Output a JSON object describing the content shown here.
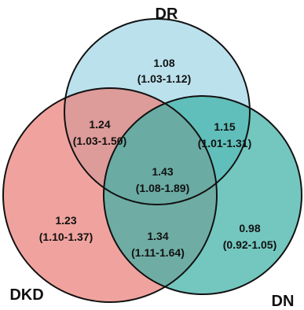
{
  "sets": {
    "top": {
      "label": "DR",
      "fill": "#A8D8E8"
    },
    "left": {
      "label": "DKD",
      "fill": "#EA7F78"
    },
    "right": {
      "label": "DN",
      "fill": "#3DB2A6"
    }
  },
  "regions": {
    "top_only": {
      "value": "1.08",
      "ci": "(1.03-1.12)"
    },
    "top_left": {
      "value": "1.24",
      "ci": "(1.03-1.50)"
    },
    "top_right": {
      "value": "1.15",
      "ci": "(1.01-1.31)"
    },
    "center": {
      "value": "1.43",
      "ci": "(1.08-1.89)"
    },
    "left_only": {
      "value": "1.23",
      "ci": "(1.10-1.37)"
    },
    "left_right": {
      "value": "1.34",
      "ci": "(1.11-1.64)"
    },
    "right_only": {
      "value": "0.98",
      "ci": "(0.92-1.05)"
    }
  },
  "style": {
    "outline_color": "#111111"
  }
}
